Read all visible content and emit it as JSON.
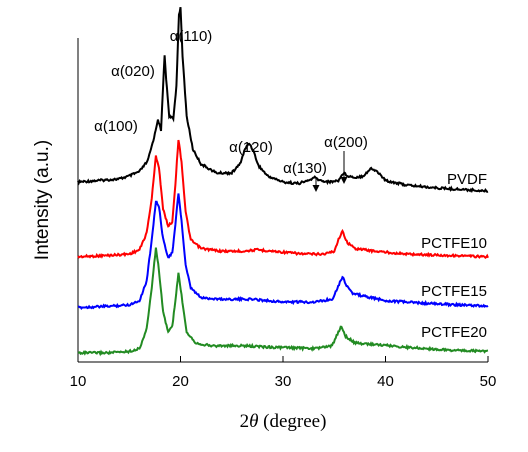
{
  "chart_data": {
    "type": "line",
    "title": "",
    "xlabel": {
      "symbol": "2",
      "italic": "θ",
      "rest": " (degree)"
    },
    "ylabel": "Intensity (a.u.)",
    "xlim": [
      10,
      50
    ],
    "xticks": [
      "10",
      "20",
      "30",
      "40",
      "50"
    ],
    "yticks": "none",
    "grid": false,
    "legend": "series labels placed beside each curve at right",
    "series": [
      {
        "name": "PVDF",
        "color": "#000000",
        "points": [
          [
            10,
            0.16
          ],
          [
            12,
            0.17
          ],
          [
            14,
            0.18
          ],
          [
            15,
            0.2
          ],
          [
            16,
            0.23
          ],
          [
            16.8,
            0.3
          ],
          [
            17.2,
            0.4
          ],
          [
            17.5,
            0.48
          ],
          [
            17.8,
            0.58
          ],
          [
            18.1,
            0.5
          ],
          [
            18.3,
            0.8
          ],
          [
            18.45,
            1.0
          ],
          [
            18.6,
            0.85
          ],
          [
            18.9,
            0.6
          ],
          [
            19.3,
            0.58
          ],
          [
            19.6,
            0.8
          ],
          [
            19.85,
            1.28
          ],
          [
            20.0,
            1.32
          ],
          [
            20.2,
            1.0
          ],
          [
            20.6,
            0.6
          ],
          [
            21.2,
            0.38
          ],
          [
            22,
            0.28
          ],
          [
            23.5,
            0.22
          ],
          [
            25,
            0.22
          ],
          [
            25.8,
            0.28
          ],
          [
            26.3,
            0.38
          ],
          [
            26.7,
            0.42
          ],
          [
            27.1,
            0.37
          ],
          [
            27.6,
            0.27
          ],
          [
            28.5,
            0.2
          ],
          [
            30,
            0.16
          ],
          [
            31.5,
            0.15
          ],
          [
            32.5,
            0.17
          ],
          [
            33.1,
            0.19
          ],
          [
            33.6,
            0.17
          ],
          [
            34.5,
            0.16
          ],
          [
            35.4,
            0.17
          ],
          [
            35.9,
            0.22
          ],
          [
            36.4,
            0.2
          ],
          [
            37,
            0.19
          ],
          [
            37.8,
            0.2
          ],
          [
            38.6,
            0.25
          ],
          [
            39.2,
            0.23
          ],
          [
            40,
            0.17
          ],
          [
            42,
            0.14
          ],
          [
            45,
            0.12
          ],
          [
            47.5,
            0.11
          ],
          [
            50,
            0.1
          ]
        ],
        "label": "PVDF"
      },
      {
        "name": "PCTFE10",
        "color": "#ff0000",
        "points": [
          [
            10,
            0.08
          ],
          [
            13,
            0.09
          ],
          [
            15,
            0.1
          ],
          [
            16,
            0.13
          ],
          [
            16.7,
            0.25
          ],
          [
            17.2,
            0.5
          ],
          [
            17.6,
            0.8
          ],
          [
            17.9,
            0.72
          ],
          [
            18.3,
            0.42
          ],
          [
            18.8,
            0.3
          ],
          [
            19.2,
            0.33
          ],
          [
            19.5,
            0.6
          ],
          [
            19.8,
            0.92
          ],
          [
            20.1,
            0.76
          ],
          [
            20.5,
            0.4
          ],
          [
            21,
            0.2
          ],
          [
            22,
            0.14
          ],
          [
            24,
            0.12
          ],
          [
            26,
            0.12
          ],
          [
            27.5,
            0.13
          ],
          [
            29,
            0.12
          ],
          [
            32,
            0.1
          ],
          [
            34,
            0.1
          ],
          [
            35,
            0.12
          ],
          [
            35.5,
            0.22
          ],
          [
            35.8,
            0.26
          ],
          [
            36.3,
            0.18
          ],
          [
            37,
            0.14
          ],
          [
            39,
            0.12
          ],
          [
            42,
            0.1
          ],
          [
            46,
            0.09
          ],
          [
            50,
            0.08
          ]
        ],
        "label": "PCTFE10"
      },
      {
        "name": "PCTFE15",
        "color": "#0000ff",
        "points": [
          [
            10,
            0.06
          ],
          [
            13,
            0.07
          ],
          [
            15,
            0.08
          ],
          [
            16,
            0.11
          ],
          [
            16.7,
            0.25
          ],
          [
            17.2,
            0.55
          ],
          [
            17.6,
            0.82
          ],
          [
            17.9,
            0.78
          ],
          [
            18.3,
            0.55
          ],
          [
            18.8,
            0.42
          ],
          [
            19.2,
            0.45
          ],
          [
            19.5,
            0.65
          ],
          [
            19.8,
            0.88
          ],
          [
            20.1,
            0.68
          ],
          [
            20.5,
            0.36
          ],
          [
            21,
            0.2
          ],
          [
            22,
            0.13
          ],
          [
            24,
            0.12
          ],
          [
            27,
            0.12
          ],
          [
            30,
            0.1
          ],
          [
            33,
            0.1
          ],
          [
            34.8,
            0.12
          ],
          [
            35.3,
            0.2
          ],
          [
            35.8,
            0.28
          ],
          [
            36.2,
            0.22
          ],
          [
            36.8,
            0.16
          ],
          [
            38,
            0.14
          ],
          [
            40,
            0.11
          ],
          [
            44,
            0.09
          ],
          [
            47,
            0.08
          ],
          [
            50,
            0.07
          ]
        ],
        "label": "PCTFE15"
      },
      {
        "name": "PCTFE20",
        "color": "#228b22",
        "points": [
          [
            10,
            0.03
          ],
          [
            13,
            0.03
          ],
          [
            15,
            0.04
          ],
          [
            16,
            0.06
          ],
          [
            16.7,
            0.2
          ],
          [
            17.2,
            0.5
          ],
          [
            17.6,
            0.78
          ],
          [
            17.9,
            0.62
          ],
          [
            18.3,
            0.32
          ],
          [
            18.8,
            0.18
          ],
          [
            19.2,
            0.22
          ],
          [
            19.5,
            0.4
          ],
          [
            19.8,
            0.6
          ],
          [
            20.1,
            0.44
          ],
          [
            20.6,
            0.18
          ],
          [
            21.5,
            0.1
          ],
          [
            23,
            0.08
          ],
          [
            26,
            0.08
          ],
          [
            29,
            0.07
          ],
          [
            33,
            0.06
          ],
          [
            34.8,
            0.08
          ],
          [
            35.4,
            0.18
          ],
          [
            35.7,
            0.22
          ],
          [
            36.1,
            0.15
          ],
          [
            37,
            0.1
          ],
          [
            39,
            0.09
          ],
          [
            42,
            0.07
          ],
          [
            46,
            0.05
          ],
          [
            50,
            0.04
          ]
        ],
        "label": "PCTFE20"
      }
    ],
    "annotations": [
      {
        "text": "α(100)",
        "x": 17.6
      },
      {
        "text": "α(020)",
        "x": 18.4
      },
      {
        "text": "α(110)",
        "x": 20.0
      },
      {
        "text": "α(120)",
        "x": 26.7
      },
      {
        "text": "α(130)",
        "x": 33.1,
        "arrow": true
      },
      {
        "text": "α(200)",
        "x": 35.9,
        "arrow": true
      }
    ]
  }
}
